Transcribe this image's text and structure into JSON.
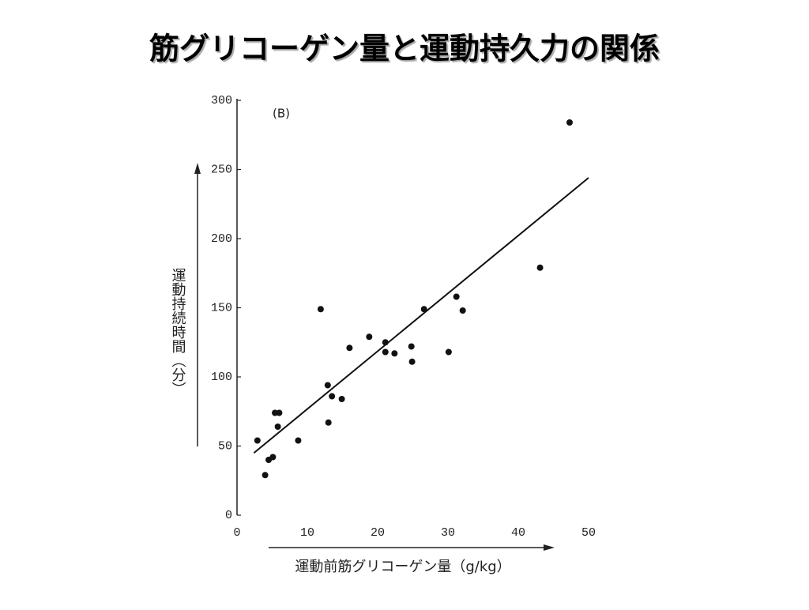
{
  "chart_data": {
    "type": "scatter",
    "title": "筋グリコーゲン量と運動持久力の関係",
    "panel_label": "(B)",
    "x_label": "運動前筋グリコーゲン量（g/kg）",
    "y_label": "運動持続時間（分）",
    "x": [
      2.9,
      4.0,
      4.5,
      5.1,
      5.4,
      6.0,
      5.8,
      8.7,
      11.9,
      12.9,
      13.0,
      13.5,
      14.9,
      16.0,
      18.8,
      21.1,
      21.1,
      22.4,
      24.8,
      24.9,
      26.6,
      30.1,
      31.2,
      32.1,
      43.1,
      47.3
    ],
    "values": [
      54,
      29,
      40,
      42,
      74,
      74,
      64,
      54,
      149,
      94,
      67,
      86,
      84,
      121,
      129,
      125,
      118,
      117,
      122,
      111,
      149,
      118,
      158,
      148,
      179,
      284
    ],
    "color": "#111111",
    "trend_line": {
      "x": [
        2.4,
        50
      ],
      "y": [
        45,
        244
      ]
    },
    "xlim": [
      0,
      50
    ],
    "xticks": [
      0,
      10,
      20,
      30,
      40,
      50
    ],
    "ylim": [
      0,
      300
    ],
    "yticks": [
      0,
      50,
      100,
      150,
      200,
      250,
      300
    ]
  }
}
